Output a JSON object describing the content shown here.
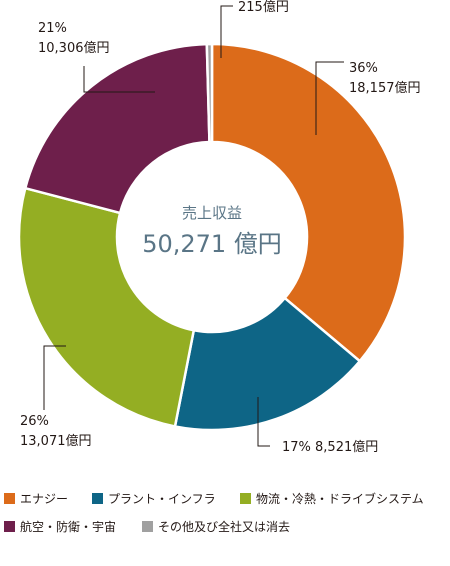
{
  "chart_data": {
    "type": "pie",
    "center_label": "売上収益",
    "center_value": "50,271 億円",
    "series": [
      {
        "name": "エナジー",
        "value": 18157,
        "value_label": "18,157億円",
        "percent_label": "36%",
        "color": "#dc6b1a"
      },
      {
        "name": "プラント・インフラ",
        "value": 8521,
        "value_label": "8,521億円",
        "percent_label": "17%",
        "color": "#0e6586"
      },
      {
        "name": "物流・冷熱・ドライブシステム",
        "value": 13071,
        "value_label": "13,071億円",
        "percent_label": "26%",
        "color": "#94ae23"
      },
      {
        "name": "航空・防衛・宇宙",
        "value": 10306,
        "value_label": "10,306億円",
        "percent_label": "21%",
        "color": "#6e1f4b"
      },
      {
        "name": "その他及び全社又は消去",
        "value": 215,
        "value_label": "215億円",
        "percent_label": "",
        "color": "#a0a0a0"
      }
    ]
  }
}
